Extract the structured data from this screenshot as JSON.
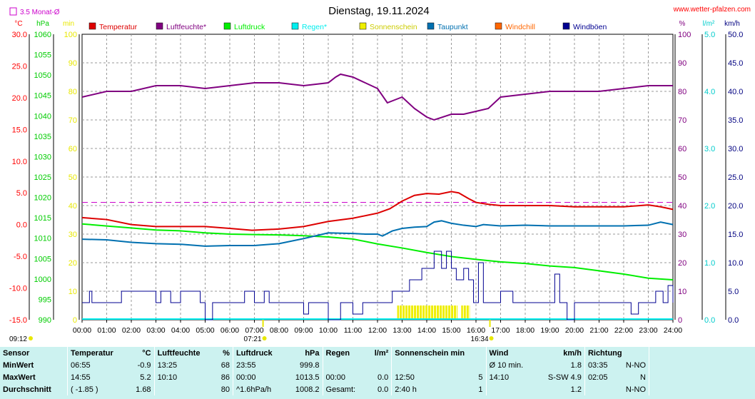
{
  "header": {
    "title": "Dienstag, 19.11.2024",
    "site": "www.wetter-pfalzen.com",
    "monthly_avg_label": "3.5 Monat-Ø"
  },
  "chart_data": {
    "type": "line",
    "title": "Dienstag, 19.11.2024",
    "x_ticks": [
      "00:00",
      "01:00",
      "02:00",
      "03:00",
      "04:00",
      "05:00",
      "06:00",
      "07:00",
      "08:00",
      "09:00",
      "10:00",
      "11:00",
      "12:00",
      "13:00",
      "14:00",
      "15:00",
      "16:00",
      "17:00",
      "18:00",
      "19:00",
      "20:00",
      "21:00",
      "22:00",
      "23:00",
      "24:00"
    ],
    "sunrise": "07:21",
    "sunset": "16:34",
    "axes": {
      "temp": {
        "unit": "°C",
        "ylim": [
          -15,
          30
        ],
        "ticks": [
          "30.0",
          "25.0",
          "20.0",
          "15.0",
          "10.0",
          "5.0",
          "0.0",
          "-5.0",
          "-10.0",
          "-15.0"
        ],
        "color": "#ff0000"
      },
      "pressure": {
        "unit": "hPa",
        "ylim": [
          990,
          1060
        ],
        "ticks": [
          "1060",
          "1055",
          "1050",
          "1045",
          "1040",
          "1035",
          "1030",
          "1025",
          "1020",
          "1015",
          "1010",
          "1005",
          "1000",
          "995",
          "990"
        ],
        "color": "#00cc00"
      },
      "sun": {
        "unit": "min",
        "ylim": [
          0,
          100
        ],
        "ticks": [
          "100",
          "90",
          "80",
          "70",
          "60",
          "50",
          "40",
          "30",
          "20",
          "10",
          "0"
        ],
        "color": "#e8e800"
      },
      "humidity": {
        "unit": "%",
        "ylim": [
          0,
          100
        ],
        "ticks": [
          "100",
          "90",
          "80",
          "70",
          "60",
          "50",
          "40",
          "30",
          "20",
          "10",
          "0"
        ],
        "color": "#800080"
      },
      "rain": {
        "unit": "l/m²",
        "ylim": [
          0,
          5
        ],
        "ticks": [
          "5.0",
          "4.0",
          "3.0",
          "2.0",
          "1.0",
          "0.0"
        ],
        "color": "#00cccc"
      },
      "wind": {
        "unit": "km/h",
        "ylim": [
          0,
          50
        ],
        "ticks": [
          "50.0",
          "45.0",
          "40.0",
          "35.0",
          "30.0",
          "25.0",
          "20.0",
          "15.0",
          "10.0",
          "5.0",
          "0.0"
        ],
        "color": "#000080"
      }
    },
    "monthly_avg_temp": 3.5,
    "legend": [
      {
        "name": "Temperatur",
        "color": "#dd0000"
      },
      {
        "name": "Luftfeuchte*",
        "color": "#800080"
      },
      {
        "name": "Luftdruck",
        "color": "#00ee00"
      },
      {
        "name": "Regen*",
        "color": "#00eeee"
      },
      {
        "name": "Sonnenschein",
        "color": "#eeee00"
      },
      {
        "name": "Taupunkt",
        "color": "#0070b0"
      },
      {
        "name": "Windchill",
        "color": "#ff6600"
      },
      {
        "name": "Windböen",
        "color": "#000090"
      }
    ],
    "series": [
      {
        "name": "Temperatur",
        "axis": "temp",
        "color": "#dd0000",
        "x": [
          0,
          1,
          2,
          3,
          4,
          5,
          6,
          6.9,
          8,
          9,
          10,
          11,
          12,
          12.5,
          13,
          13.5,
          14,
          14.5,
          15,
          15.3,
          15.7,
          16,
          16.5,
          17,
          18,
          19,
          20,
          21,
          22,
          23,
          23.5,
          24
        ],
        "y": [
          1.1,
          0.8,
          0.0,
          -0.3,
          -0.3,
          -0.3,
          -0.6,
          -0.9,
          -0.7,
          -0.3,
          0.5,
          1.0,
          1.8,
          2.5,
          3.7,
          4.6,
          4.9,
          4.8,
          5.2,
          5.0,
          4.1,
          3.5,
          3.2,
          3.0,
          3.0,
          3.0,
          2.8,
          2.8,
          2.8,
          3.1,
          2.8,
          2.4
        ]
      },
      {
        "name": "Luftfeuchte*",
        "axis": "humidity",
        "color": "#800080",
        "x": [
          0,
          1,
          2,
          3,
          4,
          5,
          6,
          7,
          8,
          9,
          10,
          10.3,
          10.5,
          11,
          11.5,
          12,
          12.4,
          12.7,
          13,
          13.5,
          14,
          14.3,
          15,
          15.5,
          16,
          16.5,
          17,
          18,
          19,
          20,
          21,
          22,
          23,
          24
        ],
        "y": [
          78,
          80,
          80,
          82,
          82,
          81,
          82,
          83,
          83,
          82,
          83,
          85,
          86,
          85,
          83,
          81,
          76,
          77,
          78,
          74,
          71,
          70,
          72,
          72,
          73,
          74,
          78,
          79,
          80,
          80,
          80,
          81,
          82,
          82
        ]
      },
      {
        "name": "Luftdruck",
        "axis": "pressure",
        "color": "#00ee00",
        "x": [
          0,
          1,
          2,
          3,
          4,
          5,
          6,
          7,
          8,
          9,
          10,
          11,
          12,
          13,
          14,
          15,
          16,
          17,
          18,
          19,
          20,
          21,
          22,
          23,
          24
        ],
        "y": [
          1013.5,
          1013.0,
          1012.5,
          1012.0,
          1011.8,
          1011.3,
          1011.0,
          1010.9,
          1010.8,
          1010.6,
          1010.3,
          1009.8,
          1008.6,
          1007.6,
          1006.5,
          1005.5,
          1004.8,
          1004.2,
          1003.8,
          1003.2,
          1002.8,
          1002.0,
          1001.2,
          1000.2,
          999.8
        ]
      },
      {
        "name": "Taupunkt",
        "axis": "temp",
        "color": "#0070b0",
        "x": [
          0,
          1,
          2,
          3,
          4,
          5,
          6,
          7,
          8,
          9,
          10,
          11,
          11.5,
          12,
          12.2,
          12.6,
          13,
          13.5,
          14,
          14.3,
          14.6,
          15,
          15.5,
          16,
          16.3,
          17,
          18,
          19,
          20,
          21,
          22,
          23,
          23.5,
          24
        ],
        "y": [
          -2.3,
          -2.4,
          -2.8,
          -3.0,
          -3.1,
          -3.4,
          -3.3,
          -3.3,
          -3.0,
          -2.2,
          -1.3,
          -1.4,
          -1.5,
          -1.5,
          -1.8,
          -1.0,
          -0.6,
          -0.4,
          -0.3,
          0.4,
          0.6,
          0.2,
          -0.1,
          -0.3,
          0.0,
          -0.2,
          -0.1,
          -0.2,
          -0.2,
          -0.2,
          -0.2,
          -0.1,
          0.4,
          0.0
        ]
      },
      {
        "name": "Windböen",
        "axis": "wind",
        "color": "#000090",
        "x": [
          0,
          0.2,
          0.3,
          0.4,
          1,
          1.5,
          1.6,
          2.8,
          3.0,
          3.2,
          3.6,
          4.0,
          4.5,
          4.8,
          5.0,
          5.3,
          6.2,
          6.6,
          7.0,
          7.4,
          7.6,
          8.0,
          8.5,
          9.0,
          9.2,
          9.5,
          10.0,
          10.5,
          11.0,
          11.4,
          11.8,
          12.2,
          12.6,
          13.0,
          13.3,
          13.6,
          13.8,
          14.0,
          14.3,
          14.6,
          14.8,
          15.0,
          15.2,
          15.5,
          15.7,
          15.9,
          16.1,
          16.3,
          16.6,
          17.0,
          17.5,
          18.0,
          18.5,
          19.0,
          19.2,
          19.4,
          19.7,
          20.0,
          20.5,
          21.0,
          21.5,
          22.0,
          22.3,
          22.6,
          23.0,
          23.3,
          23.6,
          23.8,
          24.0
        ],
        "y": [
          3,
          3,
          5,
          3,
          3,
          3,
          5,
          5,
          3,
          5,
          3,
          5,
          5,
          3,
          0,
          3,
          3,
          5,
          3,
          5,
          3,
          3,
          3,
          1,
          3,
          3,
          0,
          3,
          1,
          3,
          3,
          3,
          5,
          5,
          7,
          7,
          9,
          9,
          12,
          9,
          12,
          9,
          7,
          9,
          7,
          3,
          10,
          3,
          3,
          5,
          3,
          3,
          3,
          3,
          8,
          3,
          0,
          3,
          3,
          3,
          3,
          3,
          1,
          3,
          3,
          5,
          3,
          6,
          3
        ]
      }
    ],
    "sunshine_bars": {
      "axis": "sun",
      "color": "#eeee00",
      "intervals": [
        [
          12.8,
          15.25
        ],
        [
          15.4,
          15.75
        ]
      ],
      "value_min": 5
    },
    "table": {
      "headers": {
        "sensor": "Sensor",
        "temperatur": "Temperatur",
        "temp_unit": "°C",
        "luftfeuchte": "Luftfeuchte",
        "hum_unit": "%",
        "luftdruck": "Luftdruck",
        "press_unit": "hPa",
        "regen": "Regen",
        "rain_unit": "l/m²",
        "sonnenschein": "Sonnenschein min",
        "wind": "Wind",
        "wind_unit": "km/h",
        "richtung": "Richtung"
      },
      "rows": [
        {
          "label": "MinWert",
          "t_time": "06:55",
          "t_val": "-0.9",
          "h_time": "13:25",
          "h_val": "68",
          "p_time": "23:55",
          "p_val": "999.8",
          "r_time": "",
          "r_val": "",
          "s_time": "",
          "s_val": "",
          "w_time": "Ø 10 min.",
          "w_val": "1.8",
          "d_time": "03:35",
          "d_val": "N-NO"
        },
        {
          "label": "MaxWert",
          "t_time": "14:55",
          "t_val": "5.2",
          "h_time": "10:10",
          "h_val": "86",
          "p_time": "00:00",
          "p_val": "1013.5",
          "r_time": "00:00",
          "r_val": "0.0",
          "s_time": "12:50",
          "s_val": "5",
          "w_time": "14:10",
          "w_val": "S-SW 4.9",
          "d_time": "02:05",
          "d_val": "N"
        },
        {
          "label": "Durchschnitt",
          "t_time": "( -1.85 )",
          "t_val": "1.68",
          "h_time": "",
          "h_val": "80",
          "p_time": "^1.6hPa/h",
          "p_val": "1008.2",
          "r_time": "Gesamt:",
          "r_val": "0.0",
          "s_time": "2:40 h",
          "s_val": "1",
          "w_time": "",
          "w_val": "1.2",
          "d_time": "",
          "d_val": "N-NO"
        }
      ]
    }
  }
}
